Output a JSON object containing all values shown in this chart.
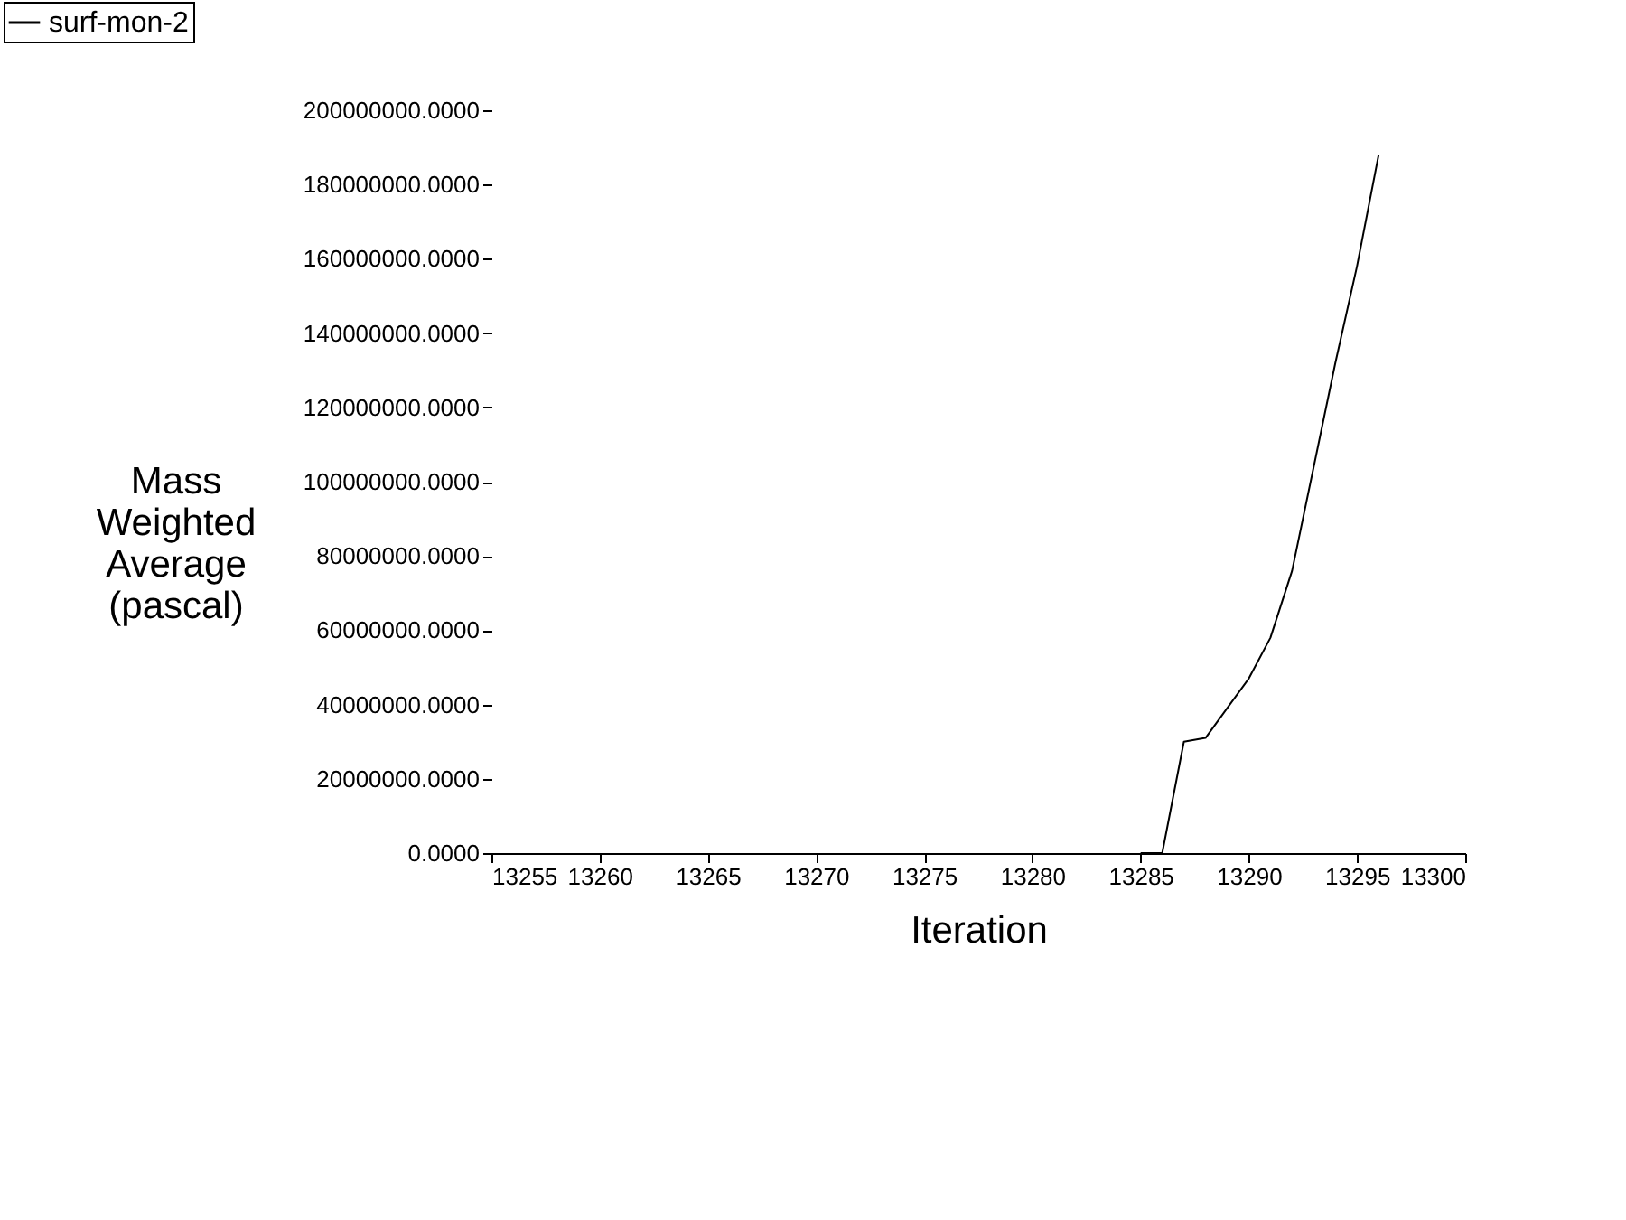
{
  "chart_data": {
    "type": "line",
    "xlabel": "Iteration",
    "ylabel": "Mass\nWeighted\nAverage\n(pascal)",
    "series": [
      {
        "name": "surf-mon-2",
        "color": "#000000",
        "x": [
          13285,
          13286,
          13287,
          13288,
          13289,
          13290,
          13291,
          13292,
          13293,
          13294,
          13295,
          13296
        ],
        "values": [
          0,
          0,
          30000000,
          31000000,
          39000000,
          47000000,
          58000000,
          76000000,
          104000000,
          132000000,
          158000000,
          188000000
        ]
      }
    ],
    "xlim": [
      13255,
      13300
    ],
    "xticks": [
      {
        "value": 13255,
        "label": "13255"
      },
      {
        "value": 13260,
        "label": "13260"
      },
      {
        "value": 13265,
        "label": "13265"
      },
      {
        "value": 13270,
        "label": "13270"
      },
      {
        "value": 13275,
        "label": "13275"
      },
      {
        "value": 13280,
        "label": "13280"
      },
      {
        "value": 13285,
        "label": "13285"
      },
      {
        "value": 13290,
        "label": "13290"
      },
      {
        "value": 13295,
        "label": "13295"
      },
      {
        "value": 13300,
        "label": "13300"
      }
    ],
    "ylim": [
      0,
      200000000
    ],
    "yticks": [
      {
        "value": 0,
        "label": "0.0000"
      },
      {
        "value": 20000000,
        "label": "20000000.0000"
      },
      {
        "value": 40000000,
        "label": "40000000.0000"
      },
      {
        "value": 60000000,
        "label": "60000000.0000"
      },
      {
        "value": 80000000,
        "label": "80000000.0000"
      },
      {
        "value": 100000000,
        "label": "100000000.0000"
      },
      {
        "value": 120000000,
        "label": "120000000.0000"
      },
      {
        "value": 140000000,
        "label": "140000000.0000"
      },
      {
        "value": 160000000,
        "label": "160000000.0000"
      },
      {
        "value": 180000000,
        "label": "180000000.0000"
      },
      {
        "value": 200000000,
        "label": "200000000.0000"
      }
    ],
    "grid": false,
    "legend": "top left",
    "marker": "none",
    "line_style": "solid"
  }
}
